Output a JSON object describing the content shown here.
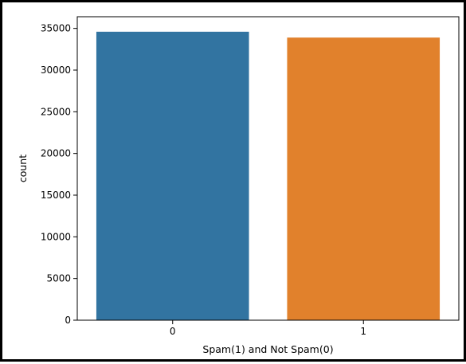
{
  "chart_data": {
    "type": "bar",
    "categories": [
      "0",
      "1"
    ],
    "values": [
      34600,
      33900
    ],
    "colors": [
      "#3274a1",
      "#e1812c"
    ],
    "xlabel": "Spam(1) and Not Spam(0)",
    "ylabel": "count",
    "ylim": [
      0,
      36400
    ],
    "yticks": [
      0,
      5000,
      10000,
      15000,
      20000,
      25000,
      30000,
      35000
    ],
    "ytick_labels": [
      "0",
      "5000",
      "10000",
      "15000",
      "20000",
      "25000",
      "30000",
      "35000"
    ],
    "grid": false,
    "legend": false
  }
}
